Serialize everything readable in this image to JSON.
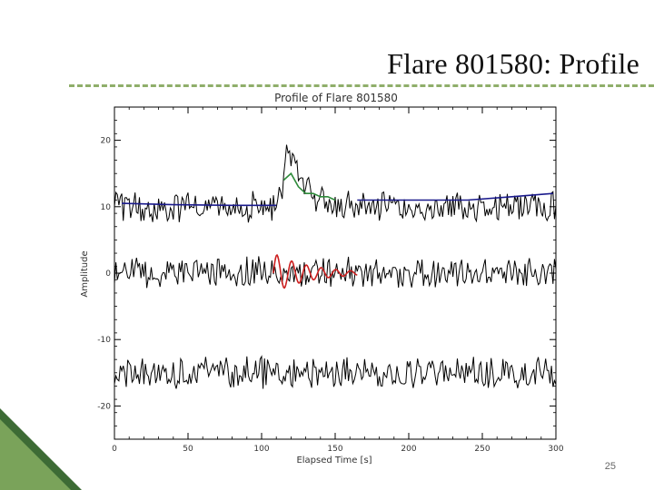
{
  "slide": {
    "title": "Flare 801580: Profile",
    "page_number": "25"
  },
  "colors": {
    "title_rule": "#8fae6a",
    "corner_dark": "#3d6b35",
    "corner_light": "#7aa35a",
    "trace_black": "#000000",
    "fit_blue": "#1a1a8c",
    "fit_green": "#2e8b3a",
    "fit_red": "#cc1f1f"
  },
  "chart_data": {
    "type": "line",
    "title": "Profile of Flare 801580",
    "xlabel": "Elapsed Time [s]",
    "ylabel": "Amplitude",
    "xlim": [
      0,
      300
    ],
    "ylim": [
      -25,
      25
    ],
    "x_ticks": [
      0,
      50,
      100,
      150,
      200,
      250,
      300
    ],
    "y_ticks": [
      -20,
      -10,
      0,
      10,
      20
    ],
    "grid": false,
    "series": [
      {
        "role": "raw-light-curve",
        "color": "#000000",
        "baseline": 10,
        "noise_amplitude": 2,
        "flare_peak_time": 118,
        "flare_peak_value": 19,
        "x_range": [
          0,
          300
        ]
      },
      {
        "role": "background-fit",
        "color": "#1a1a8c",
        "segments": [
          {
            "x": [
              5,
              40,
              80,
              110
            ],
            "y": [
              10.5,
              10.3,
              10.2,
              10.2
            ]
          },
          {
            "x": [
              165,
              200,
              240,
              270,
              298
            ],
            "y": [
              11,
              11,
              11,
              11.5,
              12
            ]
          }
        ]
      },
      {
        "role": "flare-fit",
        "color": "#2e8b3a",
        "x": [
          115,
          120,
          125,
          130,
          135,
          140,
          145,
          150
        ],
        "y": [
          14,
          15,
          13,
          12,
          12,
          11.5,
          11.5,
          11
        ]
      },
      {
        "role": "detrended-residual",
        "color": "#000000",
        "baseline": 0,
        "noise_amplitude": 2,
        "x_range": [
          0,
          300
        ]
      },
      {
        "role": "qpp-fit",
        "color": "#cc1f1f",
        "x_range": [
          108,
          165
        ],
        "amplitude_start": 3,
        "period": 10
      },
      {
        "role": "residual-noise",
        "color": "#000000",
        "baseline": -15,
        "noise_amplitude": 2,
        "x_range": [
          0,
          300
        ]
      }
    ]
  }
}
